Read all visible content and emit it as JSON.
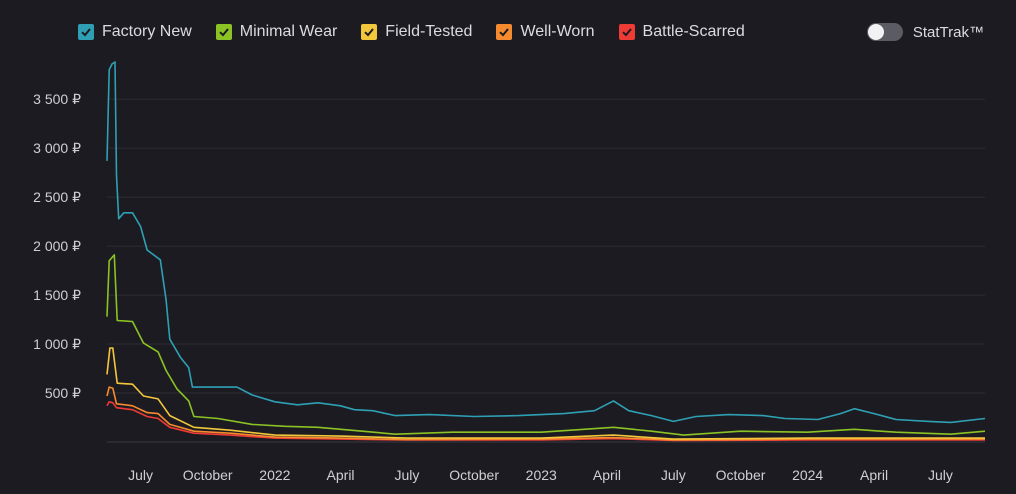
{
  "legend": {
    "items": [
      {
        "label": "Factory New",
        "color": "#2fa0b4"
      },
      {
        "label": "Minimal Wear",
        "color": "#8bc324"
      },
      {
        "label": "Field-Tested",
        "color": "#f3c73b"
      },
      {
        "label": "Well-Worn",
        "color": "#f58b2e"
      },
      {
        "label": "Battle-Scarred",
        "color": "#ee3b36"
      }
    ]
  },
  "toggle": {
    "label": "StatTrak™",
    "on": false
  },
  "chart_data": {
    "type": "line",
    "title": "",
    "xlabel": "",
    "ylabel": "",
    "x_ticks": [
      "July",
      "October",
      "2022",
      "April",
      "July",
      "October",
      "2023",
      "April",
      "July",
      "October",
      "2024",
      "April",
      "July"
    ],
    "y_ticks": [
      "500 ₽",
      "1 000 ₽",
      "1 500 ₽",
      "2 000 ₽",
      "2 500 ₽",
      "3 000 ₽",
      "3 500 ₽"
    ],
    "y_tick_values": [
      500,
      1000,
      1500,
      2000,
      2500,
      3000,
      3500
    ],
    "ylim": [
      0,
      3900
    ],
    "xlim": [
      "2021-05-16",
      "2024-08-31"
    ],
    "grid": true,
    "series": [
      {
        "name": "Factory New",
        "color": "#2fa0b4",
        "points": [
          [
            "2021-05-16",
            2870
          ],
          [
            "2021-05-19",
            3800
          ],
          [
            "2021-05-23",
            3860
          ],
          [
            "2021-05-27",
            3880
          ],
          [
            "2021-05-29",
            2720
          ],
          [
            "2021-06-01",
            2280
          ],
          [
            "2021-06-08",
            2340
          ],
          [
            "2021-06-20",
            2340
          ],
          [
            "2021-07-01",
            2200
          ],
          [
            "2021-07-10",
            1960
          ],
          [
            "2021-07-28",
            1860
          ],
          [
            "2021-08-05",
            1450
          ],
          [
            "2021-08-10",
            1050
          ],
          [
            "2021-08-25",
            860
          ],
          [
            "2021-09-05",
            760
          ],
          [
            "2021-09-10",
            560
          ],
          [
            "2021-10-15",
            560
          ],
          [
            "2021-11-10",
            560
          ],
          [
            "2021-12-01",
            480
          ],
          [
            "2022-01-01",
            410
          ],
          [
            "2022-02-01",
            380
          ],
          [
            "2022-03-01",
            400
          ],
          [
            "2022-04-01",
            370
          ],
          [
            "2022-04-20",
            330
          ],
          [
            "2022-05-15",
            320
          ],
          [
            "2022-06-15",
            270
          ],
          [
            "2022-08-01",
            280
          ],
          [
            "2022-10-01",
            260
          ],
          [
            "2022-12-01",
            270
          ],
          [
            "2023-02-01",
            290
          ],
          [
            "2023-03-15",
            320
          ],
          [
            "2023-04-10",
            420
          ],
          [
            "2023-05-01",
            320
          ],
          [
            "2023-06-01",
            270
          ],
          [
            "2023-07-01",
            210
          ],
          [
            "2023-08-01",
            260
          ],
          [
            "2023-09-15",
            280
          ],
          [
            "2023-11-01",
            270
          ],
          [
            "2023-12-01",
            240
          ],
          [
            "2024-01-15",
            230
          ],
          [
            "2024-02-15",
            290
          ],
          [
            "2024-03-05",
            340
          ],
          [
            "2024-04-01",
            290
          ],
          [
            "2024-05-01",
            230
          ],
          [
            "2024-06-15",
            210
          ],
          [
            "2024-07-15",
            200
          ],
          [
            "2024-08-31",
            240
          ]
        ]
      },
      {
        "name": "Minimal Wear",
        "color": "#8bc324",
        "points": [
          [
            "2021-05-16",
            1280
          ],
          [
            "2021-05-19",
            1850
          ],
          [
            "2021-05-26",
            1910
          ],
          [
            "2021-05-30",
            1240
          ],
          [
            "2021-06-20",
            1230
          ],
          [
            "2021-07-05",
            1010
          ],
          [
            "2021-07-25",
            920
          ],
          [
            "2021-08-05",
            730
          ],
          [
            "2021-08-20",
            540
          ],
          [
            "2021-09-05",
            420
          ],
          [
            "2021-09-12",
            260
          ],
          [
            "2021-10-15",
            240
          ],
          [
            "2021-12-01",
            180
          ],
          [
            "2022-01-15",
            160
          ],
          [
            "2022-03-01",
            150
          ],
          [
            "2022-05-01",
            110
          ],
          [
            "2022-06-15",
            80
          ],
          [
            "2022-09-01",
            100
          ],
          [
            "2023-01-01",
            100
          ],
          [
            "2023-04-10",
            150
          ],
          [
            "2023-06-01",
            110
          ],
          [
            "2023-07-15",
            70
          ],
          [
            "2023-10-01",
            110
          ],
          [
            "2024-01-01",
            100
          ],
          [
            "2024-03-05",
            130
          ],
          [
            "2024-05-01",
            100
          ],
          [
            "2024-07-15",
            80
          ],
          [
            "2024-08-31",
            110
          ]
        ]
      },
      {
        "name": "Field-Tested",
        "color": "#f3c73b",
        "points": [
          [
            "2021-05-16",
            690
          ],
          [
            "2021-05-20",
            960
          ],
          [
            "2021-05-24",
            960
          ],
          [
            "2021-05-30",
            600
          ],
          [
            "2021-06-20",
            590
          ],
          [
            "2021-07-05",
            470
          ],
          [
            "2021-07-25",
            440
          ],
          [
            "2021-08-10",
            270
          ],
          [
            "2021-09-12",
            150
          ],
          [
            "2021-11-01",
            120
          ],
          [
            "2022-01-01",
            70
          ],
          [
            "2022-04-01",
            60
          ],
          [
            "2022-07-01",
            40
          ],
          [
            "2023-01-01",
            40
          ],
          [
            "2023-04-10",
            70
          ],
          [
            "2023-07-01",
            30
          ],
          [
            "2024-01-01",
            40
          ],
          [
            "2024-08-31",
            40
          ]
        ]
      },
      {
        "name": "Well-Worn",
        "color": "#f58b2e",
        "points": [
          [
            "2021-05-16",
            470
          ],
          [
            "2021-05-19",
            560
          ],
          [
            "2021-05-24",
            550
          ],
          [
            "2021-05-29",
            390
          ],
          [
            "2021-06-20",
            370
          ],
          [
            "2021-07-10",
            300
          ],
          [
            "2021-07-25",
            290
          ],
          [
            "2021-08-10",
            180
          ],
          [
            "2021-09-12",
            110
          ],
          [
            "2021-11-01",
            90
          ],
          [
            "2022-01-01",
            50
          ],
          [
            "2022-04-01",
            40
          ],
          [
            "2022-07-01",
            25
          ],
          [
            "2023-01-01",
            30
          ],
          [
            "2023-04-10",
            45
          ],
          [
            "2023-07-01",
            20
          ],
          [
            "2024-01-01",
            30
          ],
          [
            "2024-08-31",
            30
          ]
        ]
      },
      {
        "name": "Battle-Scarred",
        "color": "#ee3b36",
        "points": [
          [
            "2021-05-16",
            370
          ],
          [
            "2021-05-19",
            410
          ],
          [
            "2021-05-24",
            400
          ],
          [
            "2021-05-29",
            350
          ],
          [
            "2021-06-20",
            330
          ],
          [
            "2021-07-10",
            260
          ],
          [
            "2021-07-25",
            240
          ],
          [
            "2021-08-10",
            150
          ],
          [
            "2021-09-12",
            90
          ],
          [
            "2021-11-01",
            70
          ],
          [
            "2022-01-01",
            40
          ],
          [
            "2022-04-01",
            30
          ],
          [
            "2022-07-01",
            20
          ],
          [
            "2023-01-01",
            20
          ],
          [
            "2023-04-10",
            35
          ],
          [
            "2023-07-01",
            15
          ],
          [
            "2024-01-01",
            20
          ],
          [
            "2024-08-31",
            20
          ]
        ]
      }
    ]
  }
}
